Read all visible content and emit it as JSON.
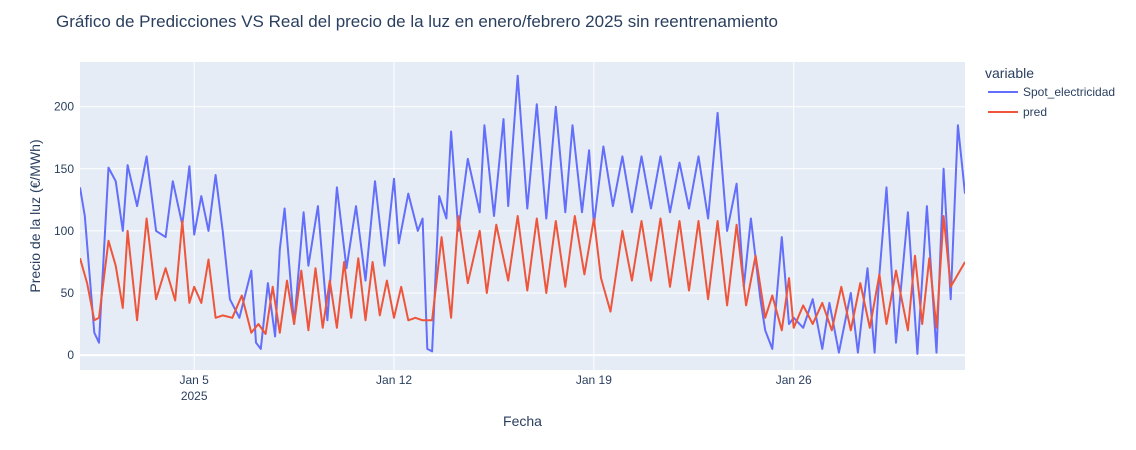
{
  "chart_data": {
    "type": "line",
    "title": "Gráfico de Predicciones VS Real del precio de la luz en enero/febrero 2025 sin reentrenamiento",
    "xlabel": "Fecha",
    "ylabel": "Precio de la luz (€/MWh)",
    "x_range": [
      "2025-01-01",
      "2025-02-01"
    ],
    "ylim": [
      -12,
      236
    ],
    "grid": true,
    "legend_title": "variable",
    "legend_position": "top-right",
    "x_ticks": [
      {
        "date": "2025-01-05",
        "label": "Jan 5",
        "sublabel": "2025"
      },
      {
        "date": "2025-01-12",
        "label": "Jan 12",
        "sublabel": ""
      },
      {
        "date": "2025-01-19",
        "label": "Jan 19",
        "sublabel": ""
      },
      {
        "date": "2025-01-26",
        "label": "Jan 26",
        "sublabel": ""
      }
    ],
    "y_ticks": [
      0,
      50,
      100,
      150,
      200
    ],
    "series": [
      {
        "name": "Spot_electricidad",
        "color": "#636efa",
        "points": [
          [
            "2025-01-01",
            135
          ],
          [
            "2025-01-01 04:00",
            112
          ],
          [
            "2025-01-01 12:00",
            18
          ],
          [
            "2025-01-01 16:00",
            10
          ],
          [
            "2025-01-02",
            151
          ],
          [
            "2025-01-02 06:00",
            140
          ],
          [
            "2025-01-02 12:00",
            100
          ],
          [
            "2025-01-02 16:00",
            153
          ],
          [
            "2025-01-03",
            120
          ],
          [
            "2025-01-03 08:00",
            160
          ],
          [
            "2025-01-03 16:00",
            100
          ],
          [
            "2025-01-04",
            95
          ],
          [
            "2025-01-04 06:00",
            140
          ],
          [
            "2025-01-04 14:00",
            105
          ],
          [
            "2025-01-04 20:00",
            152
          ],
          [
            "2025-01-05",
            97
          ],
          [
            "2025-01-05 06:00",
            128
          ],
          [
            "2025-01-05 12:00",
            100
          ],
          [
            "2025-01-05 18:00",
            145
          ],
          [
            "2025-01-06",
            100
          ],
          [
            "2025-01-06 06:00",
            45
          ],
          [
            "2025-01-06 14:00",
            30
          ],
          [
            "2025-01-07",
            68
          ],
          [
            "2025-01-07 04:00",
            10
          ],
          [
            "2025-01-07 08:00",
            5
          ],
          [
            "2025-01-07 14:00",
            58
          ],
          [
            "2025-01-07 20:00",
            15
          ],
          [
            "2025-01-08",
            85
          ],
          [
            "2025-01-08 04:00",
            118
          ],
          [
            "2025-01-08 12:00",
            25
          ],
          [
            "2025-01-08 20:00",
            115
          ],
          [
            "2025-01-09",
            72
          ],
          [
            "2025-01-09 08:00",
            120
          ],
          [
            "2025-01-09 16:00",
            28
          ],
          [
            "2025-01-10",
            135
          ],
          [
            "2025-01-10 08:00",
            70
          ],
          [
            "2025-01-10 16:00",
            120
          ],
          [
            "2025-01-11",
            60
          ],
          [
            "2025-01-11 08:00",
            140
          ],
          [
            "2025-01-11 16:00",
            72
          ],
          [
            "2025-01-12",
            142
          ],
          [
            "2025-01-12 04:00",
            90
          ],
          [
            "2025-01-12 12:00",
            130
          ],
          [
            "2025-01-12 20:00",
            100
          ],
          [
            "2025-01-13",
            110
          ],
          [
            "2025-01-13 04:00",
            5
          ],
          [
            "2025-01-13 08:00",
            3
          ],
          [
            "2025-01-13 14:00",
            128
          ],
          [
            "2025-01-13 20:00",
            110
          ],
          [
            "2025-01-14",
            180
          ],
          [
            "2025-01-14 06:00",
            100
          ],
          [
            "2025-01-14 14:00",
            158
          ],
          [
            "2025-01-15",
            115
          ],
          [
            "2025-01-15 04:00",
            185
          ],
          [
            "2025-01-15 12:00",
            112
          ],
          [
            "2025-01-15 20:00",
            190
          ],
          [
            "2025-01-16",
            120
          ],
          [
            "2025-01-16 08:00",
            225
          ],
          [
            "2025-01-16 16:00",
            118
          ],
          [
            "2025-01-17",
            202
          ],
          [
            "2025-01-17 08:00",
            110
          ],
          [
            "2025-01-17 16:00",
            200
          ],
          [
            "2025-01-18",
            115
          ],
          [
            "2025-01-18 06:00",
            185
          ],
          [
            "2025-01-18 14:00",
            115
          ],
          [
            "2025-01-18 20:00",
            165
          ],
          [
            "2025-01-19",
            105
          ],
          [
            "2025-01-19 08:00",
            168
          ],
          [
            "2025-01-19 16:00",
            120
          ],
          [
            "2025-01-20",
            160
          ],
          [
            "2025-01-20 08:00",
            115
          ],
          [
            "2025-01-20 16:00",
            160
          ],
          [
            "2025-01-21",
            118
          ],
          [
            "2025-01-21 08:00",
            160
          ],
          [
            "2025-01-21 16:00",
            115
          ],
          [
            "2025-01-22",
            155
          ],
          [
            "2025-01-22 08:00",
            118
          ],
          [
            "2025-01-22 16:00",
            160
          ],
          [
            "2025-01-23",
            110
          ],
          [
            "2025-01-23 08:00",
            195
          ],
          [
            "2025-01-23 16:00",
            100
          ],
          [
            "2025-01-24",
            138
          ],
          [
            "2025-01-24 06:00",
            55
          ],
          [
            "2025-01-24 12:00",
            110
          ],
          [
            "2025-01-24 20:00",
            45
          ],
          [
            "2025-01-25",
            20
          ],
          [
            "2025-01-25 06:00",
            5
          ],
          [
            "2025-01-25 14:00",
            95
          ],
          [
            "2025-01-25 20:00",
            25
          ],
          [
            "2025-01-26",
            30
          ],
          [
            "2025-01-26 08:00",
            22
          ],
          [
            "2025-01-26 16:00",
            45
          ],
          [
            "2025-01-27",
            5
          ],
          [
            "2025-01-27 06:00",
            42
          ],
          [
            "2025-01-27 14:00",
            2
          ],
          [
            "2025-01-28",
            50
          ],
          [
            "2025-01-28 06:00",
            2
          ],
          [
            "2025-01-28 14:00",
            70
          ],
          [
            "2025-01-28 20:00",
            2
          ],
          [
            "2025-01-29",
            65
          ],
          [
            "2025-01-29 06:00",
            135
          ],
          [
            "2025-01-29 14:00",
            10
          ],
          [
            "2025-01-30",
            115
          ],
          [
            "2025-01-30 08:00",
            1
          ],
          [
            "2025-01-30 16:00",
            120
          ],
          [
            "2025-01-31",
            2
          ],
          [
            "2025-01-31 06:00",
            150
          ],
          [
            "2025-01-31 12:00",
            45
          ],
          [
            "2025-01-31 18:00",
            185
          ],
          [
            "2025-02-01",
            130
          ]
        ]
      },
      {
        "name": "pred",
        "color": "#ef553b",
        "points": [
          [
            "2025-01-01",
            78
          ],
          [
            "2025-01-01 06:00",
            58
          ],
          [
            "2025-01-01 12:00",
            28
          ],
          [
            "2025-01-01 16:00",
            30
          ],
          [
            "2025-01-02",
            92
          ],
          [
            "2025-01-02 06:00",
            72
          ],
          [
            "2025-01-02 12:00",
            38
          ],
          [
            "2025-01-02 16:00",
            100
          ],
          [
            "2025-01-03",
            28
          ],
          [
            "2025-01-03 08:00",
            110
          ],
          [
            "2025-01-03 16:00",
            45
          ],
          [
            "2025-01-04",
            70
          ],
          [
            "2025-01-04 08:00",
            44
          ],
          [
            "2025-01-04 14:00",
            108
          ],
          [
            "2025-01-04 20:00",
            42
          ],
          [
            "2025-01-05",
            55
          ],
          [
            "2025-01-05 06:00",
            42
          ],
          [
            "2025-01-05 12:00",
            77
          ],
          [
            "2025-01-05 18:00",
            30
          ],
          [
            "2025-01-06",
            32
          ],
          [
            "2025-01-06 08:00",
            30
          ],
          [
            "2025-01-06 16:00",
            48
          ],
          [
            "2025-01-07",
            18
          ],
          [
            "2025-01-07 06:00",
            25
          ],
          [
            "2025-01-07 12:00",
            17
          ],
          [
            "2025-01-07 18:00",
            55
          ],
          [
            "2025-01-08",
            18
          ],
          [
            "2025-01-08 06:00",
            60
          ],
          [
            "2025-01-08 12:00",
            25
          ],
          [
            "2025-01-08 18:00",
            68
          ],
          [
            "2025-01-09",
            20
          ],
          [
            "2025-01-09 06:00",
            70
          ],
          [
            "2025-01-09 12:00",
            22
          ],
          [
            "2025-01-09 18:00",
            60
          ],
          [
            "2025-01-10",
            22
          ],
          [
            "2025-01-10 06:00",
            75
          ],
          [
            "2025-01-10 12:00",
            30
          ],
          [
            "2025-01-10 18:00",
            78
          ],
          [
            "2025-01-11",
            28
          ],
          [
            "2025-01-11 06:00",
            75
          ],
          [
            "2025-01-11 12:00",
            32
          ],
          [
            "2025-01-11 18:00",
            60
          ],
          [
            "2025-01-12",
            30
          ],
          [
            "2025-01-12 06:00",
            55
          ],
          [
            "2025-01-12 12:00",
            28
          ],
          [
            "2025-01-12 18:00",
            30
          ],
          [
            "2025-01-13",
            28
          ],
          [
            "2025-01-13 08:00",
            28
          ],
          [
            "2025-01-13 16:00",
            95
          ],
          [
            "2025-01-14",
            30
          ],
          [
            "2025-01-14 06:00",
            112
          ],
          [
            "2025-01-14 14:00",
            58
          ],
          [
            "2025-01-15",
            100
          ],
          [
            "2025-01-15 06:00",
            50
          ],
          [
            "2025-01-15 14:00",
            105
          ],
          [
            "2025-01-16",
            60
          ],
          [
            "2025-01-16 08:00",
            112
          ],
          [
            "2025-01-16 16:00",
            52
          ],
          [
            "2025-01-17",
            110
          ],
          [
            "2025-01-17 08:00",
            50
          ],
          [
            "2025-01-17 16:00",
            108
          ],
          [
            "2025-01-18",
            55
          ],
          [
            "2025-01-18 08:00",
            112
          ],
          [
            "2025-01-18 16:00",
            65
          ],
          [
            "2025-01-19",
            110
          ],
          [
            "2025-01-19 06:00",
            62
          ],
          [
            "2025-01-19 14:00",
            35
          ],
          [
            "2025-01-20",
            100
          ],
          [
            "2025-01-20 08:00",
            60
          ],
          [
            "2025-01-20 16:00",
            108
          ],
          [
            "2025-01-21",
            60
          ],
          [
            "2025-01-21 08:00",
            110
          ],
          [
            "2025-01-21 16:00",
            55
          ],
          [
            "2025-01-22",
            108
          ],
          [
            "2025-01-22 08:00",
            52
          ],
          [
            "2025-01-22 16:00",
            108
          ],
          [
            "2025-01-23",
            45
          ],
          [
            "2025-01-23 08:00",
            108
          ],
          [
            "2025-01-23 16:00",
            40
          ],
          [
            "2025-01-24",
            105
          ],
          [
            "2025-01-24 08:00",
            40
          ],
          [
            "2025-01-24 16:00",
            80
          ],
          [
            "2025-01-25",
            30
          ],
          [
            "2025-01-25 06:00",
            48
          ],
          [
            "2025-01-25 14:00",
            20
          ],
          [
            "2025-01-25 20:00",
            62
          ],
          [
            "2025-01-26",
            22
          ],
          [
            "2025-01-26 08:00",
            40
          ],
          [
            "2025-01-26 16:00",
            25
          ],
          [
            "2025-01-27",
            42
          ],
          [
            "2025-01-27 08:00",
            20
          ],
          [
            "2025-01-27 16:00",
            55
          ],
          [
            "2025-01-28",
            20
          ],
          [
            "2025-01-28 08:00",
            58
          ],
          [
            "2025-01-28 16:00",
            22
          ],
          [
            "2025-01-29",
            65
          ],
          [
            "2025-01-29 06:00",
            25
          ],
          [
            "2025-01-29 14:00",
            68
          ],
          [
            "2025-01-30",
            20
          ],
          [
            "2025-01-30 06:00",
            80
          ],
          [
            "2025-01-30 12:00",
            25
          ],
          [
            "2025-01-30 18:00",
            78
          ],
          [
            "2025-01-31",
            22
          ],
          [
            "2025-01-31 06:00",
            112
          ],
          [
            "2025-01-31 12:00",
            55
          ],
          [
            "2025-02-01",
            75
          ]
        ]
      }
    ]
  }
}
